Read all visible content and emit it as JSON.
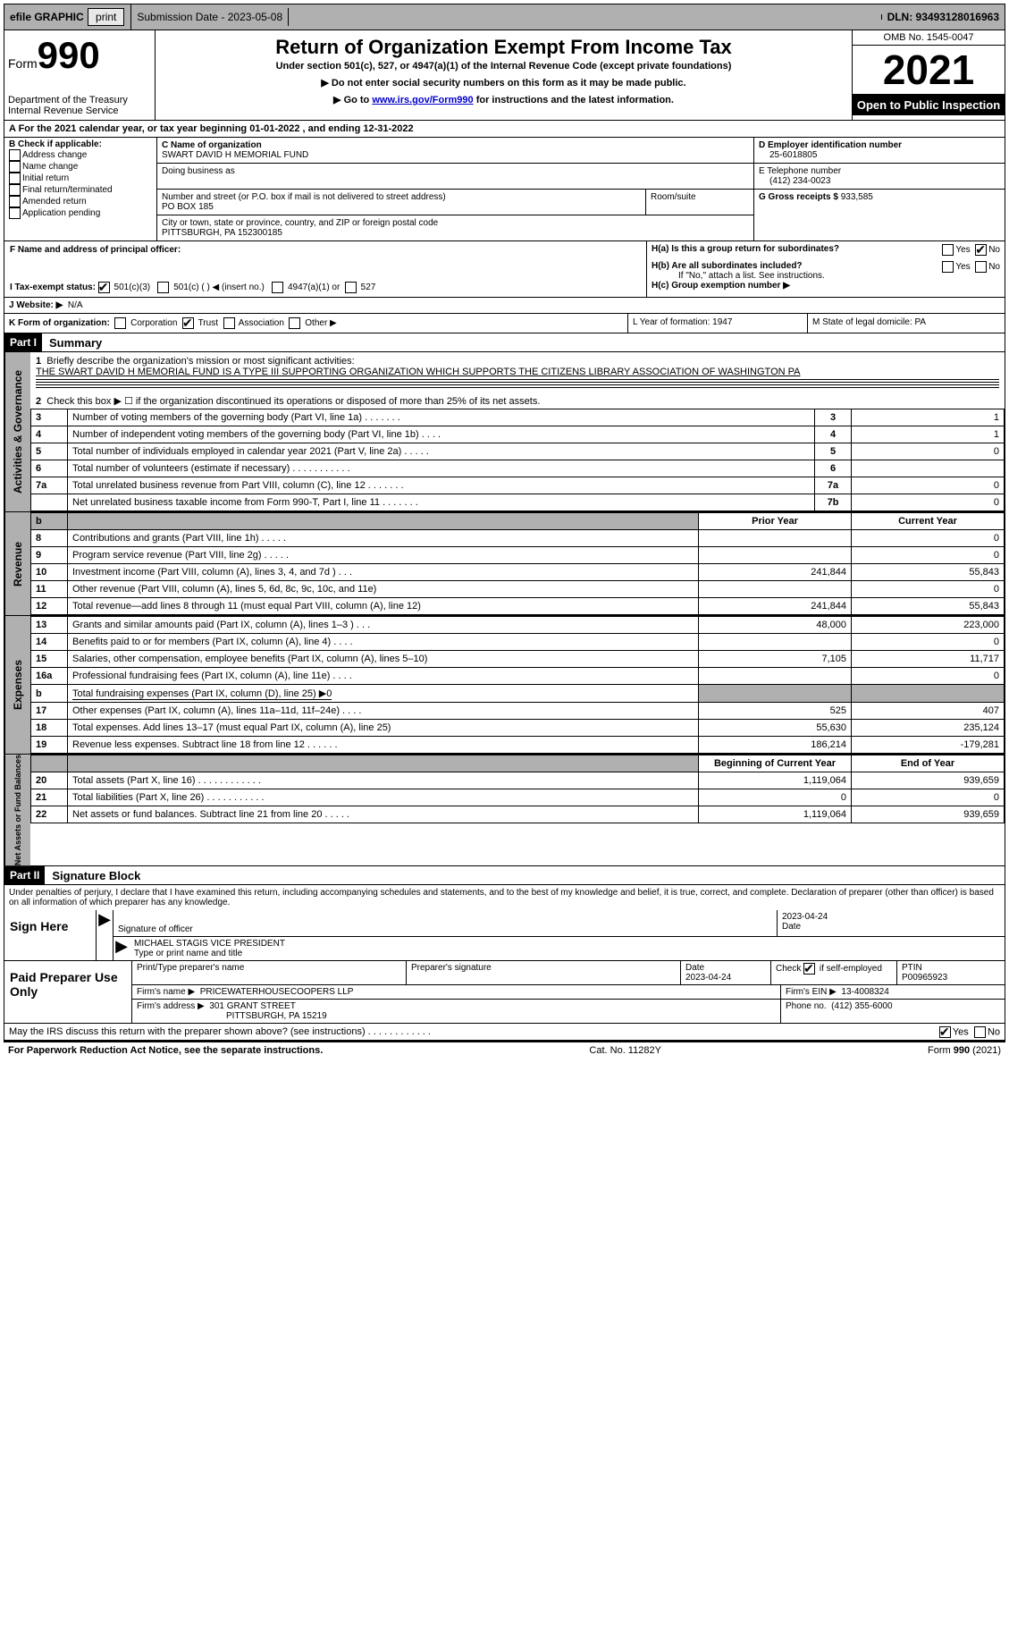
{
  "top": {
    "efile": "efile GRAPHIC",
    "print": "print",
    "subdate_label": "Submission Date - 2023-05-08",
    "dln_label": "DLN: 93493128016963"
  },
  "header": {
    "form_label": "Form",
    "form_num": "990",
    "dept": "Department of the Treasury",
    "irs": "Internal Revenue Service",
    "title": "Return of Organization Exempt From Income Tax",
    "sub1": "Under section 501(c), 527, or 4947(a)(1) of the Internal Revenue Code (except private foundations)",
    "sub2": "▶ Do not enter social security numbers on this form as it may be made public.",
    "sub3_pre": "▶ Go to ",
    "sub3_link": "www.irs.gov/Form990",
    "sub3_post": " for instructions and the latest information.",
    "omb": "OMB No. 1545-0047",
    "year": "2021",
    "open": "Open to Public Inspection"
  },
  "cal": {
    "line": "A For the 2021 calendar year, or tax year beginning 01-01-2022     , and ending 12-31-2022"
  },
  "boxB": {
    "title": "B Check if applicable:",
    "o1": "Address change",
    "o2": "Name change",
    "o3": "Initial return",
    "o4": "Final return/terminated",
    "o5": "Amended return",
    "o6": "Application pending"
  },
  "boxC": {
    "name_lbl": "C Name of organization",
    "name": "SWART DAVID H MEMORIAL FUND",
    "dba_lbl": "Doing business as",
    "addr_lbl": "Number and street (or P.O. box if mail is not delivered to street address)",
    "room_lbl": "Room/suite",
    "addr": "PO BOX 185",
    "city_lbl": "City or town, state or province, country, and ZIP or foreign postal code",
    "city": "PITTSBURGH, PA  152300185"
  },
  "boxD": {
    "lbl": "D Employer identification number",
    "val": "25-6018805"
  },
  "boxE": {
    "lbl": "E Telephone number",
    "val": "(412) 234-0023"
  },
  "boxG": {
    "lbl": "G Gross receipts $",
    "val": "933,585"
  },
  "boxF": {
    "lbl": "F Name and address of principal officer:"
  },
  "boxH": {
    "ha": "H(a)  Is this a group return for subordinates?",
    "hb": "H(b)  Are all subordinates included?",
    "hb2": "If \"No,\" attach a list. See instructions.",
    "hc": "H(c)  Group exemption number ▶",
    "yes": "Yes",
    "no": "No"
  },
  "boxI": {
    "lbl": "I   Tax-exempt status:",
    "o1": "501(c)(3)",
    "o2": "501(c) (  ) ◀ (insert no.)",
    "o3": "4947(a)(1) or",
    "o4": "527"
  },
  "boxJ": {
    "lbl": "J   Website: ▶",
    "val": "N/A"
  },
  "boxK": {
    "lbl": "K Form of organization:",
    "o1": "Corporation",
    "o2": "Trust",
    "o3": "Association",
    "o4": "Other ▶"
  },
  "boxL": {
    "lbl": "L Year of formation: 1947"
  },
  "boxM": {
    "lbl": "M State of legal domicile: PA"
  },
  "partI": {
    "hdr": "Part I",
    "title": "Summary",
    "vtab1": "Activities & Governance",
    "vtab2": "Revenue",
    "vtab3": "Expenses",
    "vtab4": "Net Assets or Fund Balances",
    "l1a": "Briefly describe the organization's mission or most significant activities:",
    "l1b": "THE SWART DAVID H MEMORIAL FUND IS A TYPE III SUPPORTING ORGANIZATION WHICH SUPPORTS THE CITIZENS LIBRARY ASSOCIATION OF WASHINGTON PA",
    "l2": "Check this box ▶ ☐  if the organization discontinued its operations or disposed of more than 25% of its net assets.",
    "rows_ag": [
      {
        "n": "3",
        "t": "Number of voting members of the governing body (Part VI, line 1a)   .     .     .     .     .     .     .",
        "r": "3",
        "v": "1"
      },
      {
        "n": "4",
        "t": "Number of independent voting members of the governing body (Part VI, line 1b)   .     .     .     .",
        "r": "4",
        "v": "1"
      },
      {
        "n": "5",
        "t": "Total number of individuals employed in calendar year 2021 (Part V, line 2a)    .     .     .     .     .",
        "r": "5",
        "v": "0"
      },
      {
        "n": "6",
        "t": "Total number of volunteers (estimate if necessary)     .     .     .     .     .     .     .     .     .     .     .",
        "r": "6",
        "v": ""
      },
      {
        "n": "7a",
        "t": "Total unrelated business revenue from Part VIII, column (C), line 12     .     .     .     .     .     .     .",
        "r": "7a",
        "v": "0"
      },
      {
        "n": "",
        "t": "Net unrelated business taxable income from Form 990-T, Part I, line 11   .      .     .     .     .     .     .",
        "r": "7b",
        "v": "0"
      }
    ],
    "pycol": "Prior Year",
    "cycol": "Current Year",
    "rows_rev": [
      {
        "n": "8",
        "t": "Contributions and grants (Part VIII, line 1h)    .     .     .     .     .",
        "py": "",
        "cy": "0"
      },
      {
        "n": "9",
        "t": "Program service revenue (Part VIII, line 2g)   .     .     .     .     .",
        "py": "",
        "cy": "0"
      },
      {
        "n": "10",
        "t": "Investment income (Part VIII, column (A), lines 3, 4, and 7d )    .     .     .",
        "py": "241,844",
        "cy": "55,843"
      },
      {
        "n": "11",
        "t": "Other revenue (Part VIII, column (A), lines 5, 6d, 8c, 9c, 10c, and 11e)",
        "py": "",
        "cy": "0"
      },
      {
        "n": "12",
        "t": "Total revenue—add lines 8 through 11 (must equal Part VIII, column (A), line 12)",
        "py": "241,844",
        "cy": "55,843"
      }
    ],
    "rows_exp": [
      {
        "n": "13",
        "t": "Grants and similar amounts paid (Part IX, column (A), lines 1–3 )    .     .     .",
        "py": "48,000",
        "cy": "223,000"
      },
      {
        "n": "14",
        "t": "Benefits paid to or for members (Part IX, column (A), line 4)    .     .     .     .",
        "py": "",
        "cy": "0"
      },
      {
        "n": "15",
        "t": "Salaries, other compensation, employee benefits (Part IX, column (A), lines 5–10)",
        "py": "7,105",
        "cy": "11,717"
      },
      {
        "n": "16a",
        "t": "Professional fundraising fees (Part IX, column (A), line 11e)    .     .     .     .",
        "py": "",
        "cy": "0"
      },
      {
        "n": "b",
        "t": "Total fundraising expenses (Part IX, column (D), line 25) ▶0",
        "py": "SHADE",
        "cy": "SHADE"
      },
      {
        "n": "17",
        "t": "Other expenses (Part IX, column (A), lines 11a–11d, 11f–24e)    .     .     .     .",
        "py": "525",
        "cy": "407"
      },
      {
        "n": "18",
        "t": "Total expenses. Add lines 13–17 (must equal Part IX, column (A), line 25)",
        "py": "55,630",
        "cy": "235,124"
      },
      {
        "n": "19",
        "t": "Revenue less expenses. Subtract line 18 from line 12   .     .     .     .     .     .",
        "py": "186,214",
        "cy": "-179,281"
      }
    ],
    "bocol": "Beginning of Current Year",
    "eocol": "End of Year",
    "rows_na": [
      {
        "n": "20",
        "t": "Total assets (Part X, line 16)   .     .     .     .     .     .     .     .     .     .     .     .",
        "py": "1,119,064",
        "cy": "939,659"
      },
      {
        "n": "21",
        "t": "Total liabilities (Part X, line 26)   .     .     .     .     .     .     .     .     .     .     .",
        "py": "0",
        "cy": "0"
      },
      {
        "n": "22",
        "t": "Net assets or fund balances. Subtract line 21 from line 20     .     .     .     .     .",
        "py": "1,119,064",
        "cy": "939,659"
      }
    ]
  },
  "partII": {
    "hdr": "Part II",
    "title": "Signature Block",
    "decl": "Under penalties of perjury, I declare that I have examined this return, including accompanying schedules and statements, and to the best of my knowledge and belief, it is true, correct, and complete. Declaration of preparer (other than officer) is based on all information of which preparer has any knowledge.",
    "sign": "Sign Here",
    "sigoff": "Signature of officer",
    "date": "Date",
    "sigdate": "2023-04-24",
    "name": "MICHAEL STAGIS  VICE PRESIDENT",
    "typelbl": "Type or print name and title",
    "paid": "Paid Preparer Use Only",
    "pp_name_lbl": "Print/Type preparer's name",
    "pp_sig_lbl": "Preparer's signature",
    "pp_date_lbl": "Date",
    "pp_date": "2023-04-24",
    "pp_check": "Check ☑ if self-employed",
    "pp_ptin_lbl": "PTIN",
    "pp_ptin": "P00965923",
    "firm_name_lbl": "Firm's name      ▶",
    "firm_name": "PRICEWATERHOUSECOOPERS LLP",
    "firm_ein_lbl": "Firm's EIN ▶",
    "firm_ein": "13-4008324",
    "firm_addr_lbl": "Firm's address ▶",
    "firm_addr1": "301 GRANT STREET",
    "firm_addr2": "PITTSBURGH, PA  15219",
    "phone_lbl": "Phone no.",
    "phone": "(412) 355-6000",
    "discuss": "May the IRS discuss this return with the preparer shown above? (see instructions)    .     .     .     .     .     .     .     .     .     .     .     .",
    "yes": "Yes",
    "no": "No"
  },
  "footer": {
    "pra": "For Paperwork Reduction Act Notice, see the separate instructions.",
    "cat": "Cat. No. 11282Y",
    "form": "Form 990 (2021)"
  }
}
